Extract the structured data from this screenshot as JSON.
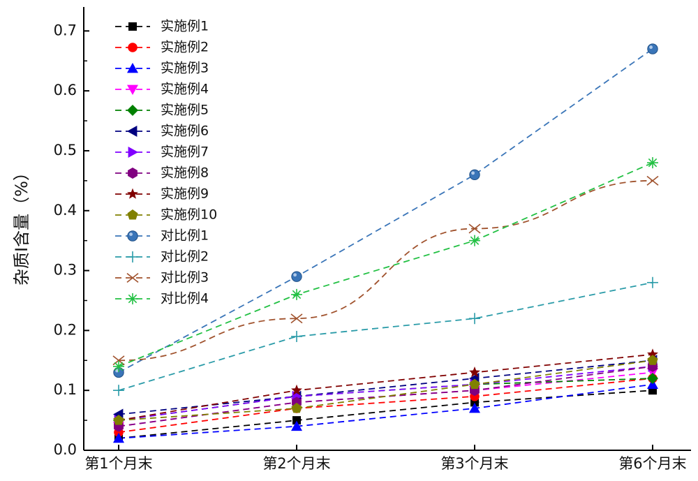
{
  "chart_data": {
    "type": "line",
    "title": "",
    "xlabel": "",
    "ylabel": "杂质I含量（%）",
    "categories": [
      "第1个月末",
      "第2个月末",
      "第3个月末",
      "第6个月末"
    ],
    "ylim": [
      0.0,
      0.74
    ],
    "yticks": [
      "0.0",
      "0.1",
      "0.2",
      "0.3",
      "0.4",
      "0.5",
      "0.6",
      "0.7"
    ],
    "grid": false,
    "legend_position": "top-left",
    "series": [
      {
        "name": "实施例1",
        "color": "#000000",
        "marker": "square",
        "values": [
          0.02,
          0.05,
          0.08,
          0.1
        ]
      },
      {
        "name": "实施例2",
        "color": "#ff0000",
        "marker": "circle",
        "values": [
          0.03,
          0.07,
          0.09,
          0.12
        ]
      },
      {
        "name": "实施例3",
        "color": "#0000ff",
        "marker": "triangle-up",
        "values": [
          0.02,
          0.04,
          0.07,
          0.11
        ]
      },
      {
        "name": "实施例4",
        "color": "#ff00ff",
        "marker": "triangle-down",
        "values": [
          0.04,
          0.08,
          0.1,
          0.13
        ]
      },
      {
        "name": "实施例5",
        "color": "#008000",
        "marker": "diamond",
        "values": [
          0.05,
          0.09,
          0.11,
          0.12
        ]
      },
      {
        "name": "实施例6",
        "color": "#000080",
        "marker": "triangle-left",
        "values": [
          0.06,
          0.09,
          0.12,
          0.15
        ]
      },
      {
        "name": "实施例7",
        "color": "#8000ff",
        "marker": "triangle-right",
        "values": [
          0.05,
          0.09,
          0.11,
          0.14
        ]
      },
      {
        "name": "实施例8",
        "color": "#800080",
        "marker": "hexagon",
        "values": [
          0.04,
          0.08,
          0.1,
          0.14
        ]
      },
      {
        "name": "实施例9",
        "color": "#800000",
        "marker": "star",
        "values": [
          0.05,
          0.1,
          0.13,
          0.16
        ]
      },
      {
        "name": "实施例10",
        "color": "#808000",
        "marker": "pentagon",
        "values": [
          0.05,
          0.07,
          0.11,
          0.15
        ]
      },
      {
        "name": "对比例1",
        "color": "#3a75b8",
        "marker": "sphere",
        "values": [
          0.13,
          0.29,
          0.46,
          0.67
        ]
      },
      {
        "name": "对比例2",
        "color": "#2a9ba8",
        "marker": "plus",
        "values": [
          0.1,
          0.19,
          0.22,
          0.28
        ]
      },
      {
        "name": "对比例3",
        "color": "#a0522d",
        "marker": "x",
        "values": [
          0.15,
          0.22,
          0.37,
          0.45
        ]
      },
      {
        "name": "对比例4",
        "color": "#22c043",
        "marker": "asterisk",
        "values": [
          0.14,
          0.26,
          0.35,
          0.48
        ]
      }
    ]
  }
}
